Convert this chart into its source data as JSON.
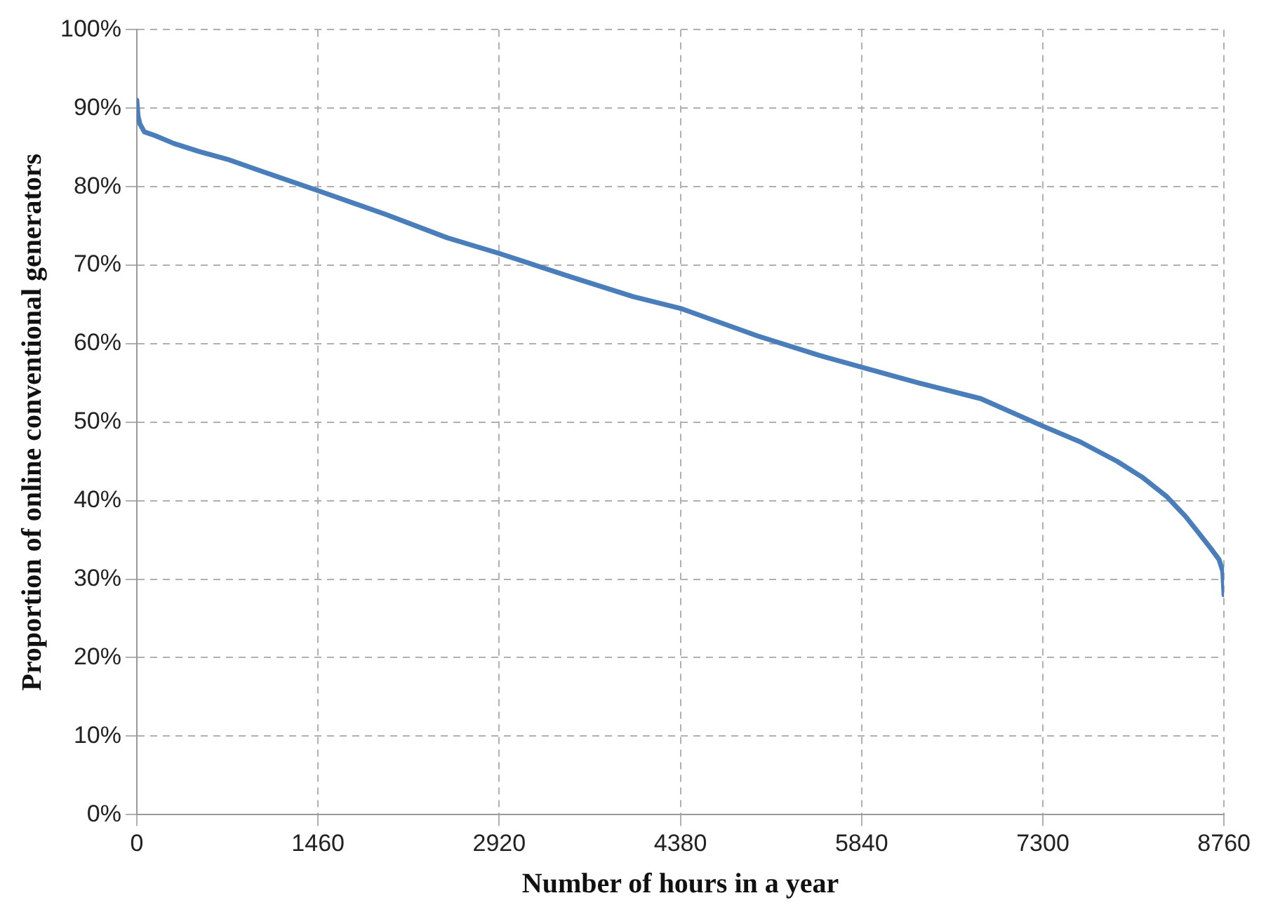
{
  "chart_data": {
    "type": "line",
    "xlabel": "Number of hours in a year",
    "ylabel": "Proportion of online conventional generators",
    "x": [
      0,
      10,
      25,
      60,
      150,
      300,
      500,
      730,
      1000,
      1460,
      2000,
      2500,
      2920,
      3500,
      4000,
      4380,
      5000,
      5500,
      5840,
      6300,
      6800,
      7300,
      7600,
      7900,
      8100,
      8300,
      8450,
      8550,
      8650,
      8720,
      8750,
      8760
    ],
    "series": [
      {
        "color": "#4a7ebb",
        "values": [
          91,
          89,
          88,
          87,
          86.5,
          85.5,
          84.5,
          83.5,
          82,
          79.5,
          76.5,
          73.5,
          71.5,
          68.5,
          66,
          64.5,
          61,
          58.5,
          57,
          55,
          53,
          49.5,
          47.5,
          45,
          43,
          40.5,
          38,
          36,
          34,
          32.5,
          31,
          28
        ]
      }
    ],
    "xlim": [
      0,
      8760
    ],
    "xticks": [
      0,
      1460,
      2920,
      4380,
      5840,
      7300,
      8760
    ],
    "ylim": [
      0,
      100
    ],
    "yticks": [
      {
        "value": 0,
        "label": "0%"
      },
      {
        "value": 10,
        "label": "10%"
      },
      {
        "value": 20,
        "label": "20%"
      },
      {
        "value": 30,
        "label": "30%"
      },
      {
        "value": 40,
        "label": "40%"
      },
      {
        "value": 50,
        "label": "50%"
      },
      {
        "value": 60,
        "label": "60%"
      },
      {
        "value": 70,
        "label": "70%"
      },
      {
        "value": 80,
        "label": "80%"
      },
      {
        "value": 90,
        "label": "90%"
      },
      {
        "value": 100,
        "label": "100%"
      }
    ],
    "grid": true,
    "marker": "none",
    "line_style": "solid"
  }
}
